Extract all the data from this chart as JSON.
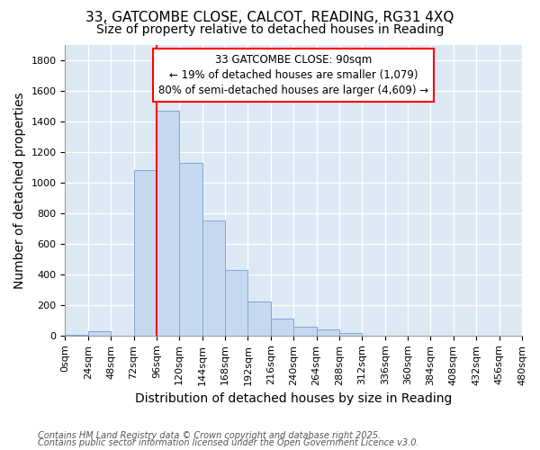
{
  "title_line1": "33, GATCOMBE CLOSE, CALCOT, READING, RG31 4XQ",
  "title_line2": "Size of property relative to detached houses in Reading",
  "xlabel": "Distribution of detached houses by size in Reading",
  "ylabel": "Number of detached properties",
  "bar_color": "#c5d8f0",
  "bar_edgecolor": "#7baad4",
  "background_color": "#dde8f5",
  "grid_color": "white",
  "redline_x": 96,
  "bin_edges": [
    0,
    24,
    48,
    72,
    96,
    120,
    144,
    168,
    192,
    216,
    240,
    264,
    288,
    312,
    336,
    360,
    384,
    408,
    432,
    456,
    480
  ],
  "bar_heights": [
    5,
    30,
    0,
    1080,
    1470,
    1130,
    750,
    430,
    225,
    110,
    55,
    40,
    15,
    0,
    0,
    0,
    0,
    0,
    0,
    0
  ],
  "ylim": [
    0,
    1900
  ],
  "yticks": [
    0,
    200,
    400,
    600,
    800,
    1000,
    1200,
    1400,
    1600,
    1800
  ],
  "annotation_text": "33 GATCOMBE CLOSE: 90sqm\n← 19% of detached houses are smaller (1,079)\n80% of semi-detached houses are larger (4,609) →",
  "footer_line1": "Contains HM Land Registry data © Crown copyright and database right 2025.",
  "footer_line2": "Contains public sector information licensed under the Open Government Licence v3.0.",
  "title_fontsize": 11,
  "subtitle_fontsize": 10,
  "axis_label_fontsize": 10,
  "tick_fontsize": 8,
  "annotation_fontsize": 8.5,
  "footer_fontsize": 7
}
